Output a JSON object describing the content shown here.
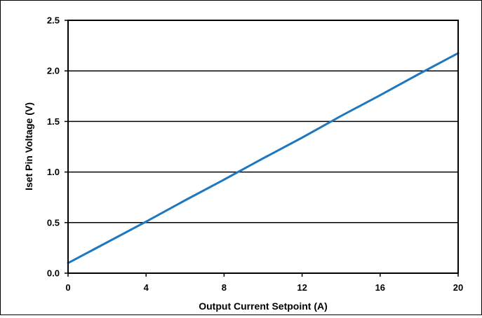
{
  "chart_data": {
    "type": "line",
    "title": "",
    "xlabel": "Output Current Setpoint (A)",
    "ylabel": "Iset Pin Voltage (V)",
    "xlim": [
      0,
      20
    ],
    "ylim": [
      0,
      2.5
    ],
    "xticks": [
      "0",
      "4",
      "8",
      "12",
      "16",
      "20"
    ],
    "yticks": [
      "0.0",
      "0.5",
      "1.0",
      "1.5",
      "2.0",
      "2.5"
    ],
    "grid": "horizontal",
    "series": [
      {
        "color": "#1f77c0",
        "x": [
          0,
          2,
          4,
          6,
          8,
          10,
          12,
          14,
          16,
          18,
          20
        ],
        "y": [
          0.1,
          0.305,
          0.51,
          0.72,
          0.925,
          1.135,
          1.34,
          1.555,
          1.76,
          1.97,
          2.175
        ]
      }
    ]
  }
}
